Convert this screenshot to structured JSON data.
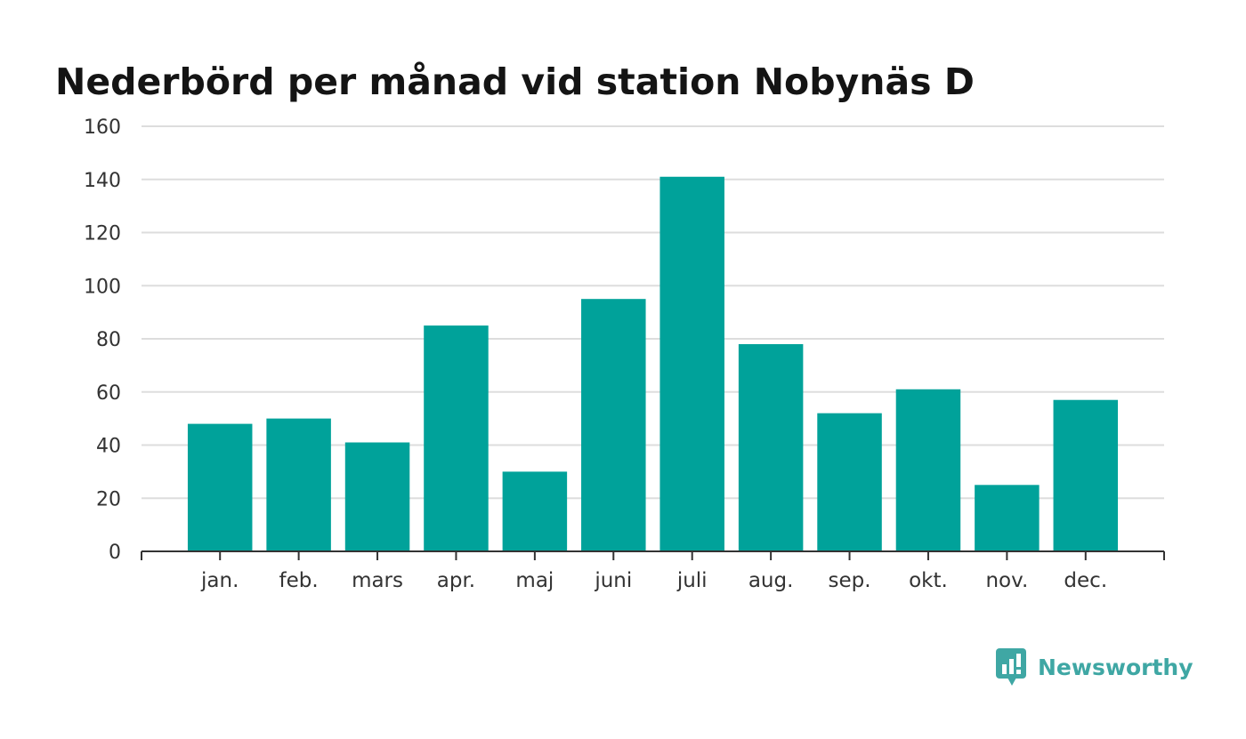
{
  "chart_data": {
    "type": "bar",
    "title": "Nederbörd per månad vid station Nobynäs D",
    "xlabel": "",
    "ylabel": "",
    "categories": [
      "jan.",
      "feb.",
      "mars",
      "apr.",
      "maj",
      "juni",
      "juli",
      "aug.",
      "sep.",
      "okt.",
      "nov.",
      "dec."
    ],
    "values": [
      48,
      50,
      41,
      85,
      30,
      95,
      141,
      78,
      52,
      61,
      25,
      57
    ],
    "ylim": [
      0,
      160
    ],
    "yticks": [
      "0",
      "20",
      "40",
      "60",
      "80",
      "100",
      "120",
      "140",
      "160"
    ],
    "grid": true,
    "legend": "none",
    "bar_color": "#00a29a",
    "grid_color": "#dddddd",
    "axis_color": "#333333"
  },
  "brand": {
    "name": "Newsworthy",
    "icon": "newsworthy-logo-icon",
    "color": "#3fa7a4"
  }
}
